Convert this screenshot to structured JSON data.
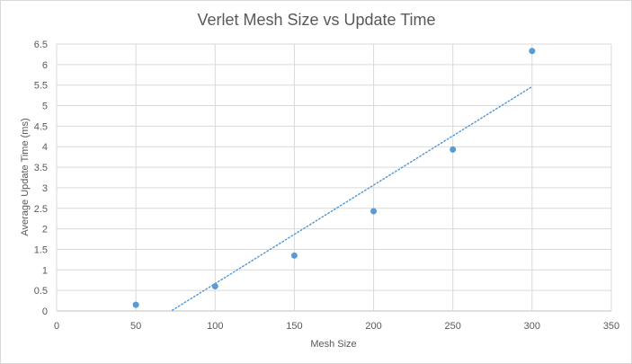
{
  "chart_data": {
    "type": "scatter",
    "title": "Verlet Mesh Size vs Update Time",
    "xlabel": "Mesh Size",
    "ylabel": "Average Update Time  (ms)",
    "xlim": [
      0,
      350
    ],
    "ylim": [
      0,
      6.5
    ],
    "xticks": [
      "0",
      "50",
      "100",
      "150",
      "200",
      "250",
      "300",
      "350"
    ],
    "yticks": [
      "0",
      "0.5",
      "1",
      "1.5",
      "2",
      "2.5",
      "3",
      "3.5",
      "4",
      "4.5",
      "5",
      "5.5",
      "6",
      "6.5"
    ],
    "grid": true,
    "legend": "none",
    "series": [
      {
        "x": [
          50,
          100,
          150,
          200,
          250,
          300
        ],
        "y": [
          0.15,
          0.6,
          1.35,
          2.43,
          3.93,
          6.33
        ],
        "color": "#5b9bd5",
        "marker": "circle"
      }
    ],
    "trendline": {
      "type": "linear",
      "style": "dotted",
      "color": "#5b9bd5",
      "x_start": 73,
      "x_end": 300
    }
  }
}
